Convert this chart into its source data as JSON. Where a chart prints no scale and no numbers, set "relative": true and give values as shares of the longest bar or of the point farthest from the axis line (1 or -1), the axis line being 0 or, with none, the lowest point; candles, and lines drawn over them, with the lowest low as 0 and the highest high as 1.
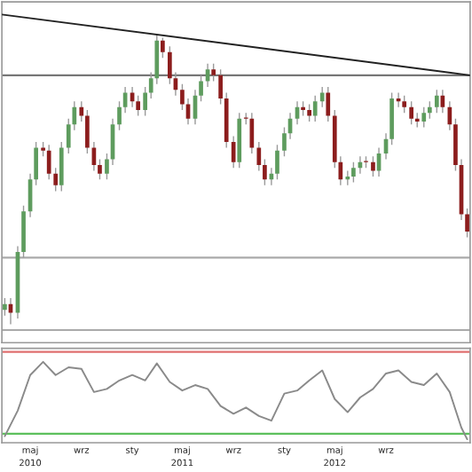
{
  "chart_data": [
    {
      "type": "candlestick",
      "relative": true,
      "xlim": [
        "2010-02-22",
        "2013-03-22"
      ],
      "tick_labels": false,
      "x": [
        "2010-03-01",
        "2010-03-15",
        "2010-04-01",
        "2010-04-15",
        "2010-05-01",
        "2010-05-15",
        "2010-06-01",
        "2010-06-15",
        "2010-07-01",
        "2010-07-15",
        "2010-08-01",
        "2010-08-15",
        "2010-09-01",
        "2010-09-15",
        "2010-10-01",
        "2010-10-15",
        "2010-11-01",
        "2010-11-15",
        "2010-12-01",
        "2010-12-15",
        "2011-01-01",
        "2011-01-15",
        "2011-02-01",
        "2011-02-15",
        "2011-03-01",
        "2011-03-15",
        "2011-04-01",
        "2011-04-15",
        "2011-05-01",
        "2011-05-15",
        "2011-06-01",
        "2011-06-15",
        "2011-07-01",
        "2011-07-15",
        "2011-08-01",
        "2011-08-15",
        "2011-09-01",
        "2011-09-15",
        "2011-10-01",
        "2011-10-15",
        "2011-11-01",
        "2011-11-15",
        "2011-12-01",
        "2011-12-15",
        "2012-01-01",
        "2012-01-15",
        "2012-02-01",
        "2012-02-15",
        "2012-03-01",
        "2012-03-15",
        "2012-04-01",
        "2012-04-15",
        "2012-05-01",
        "2012-05-15",
        "2012-06-01",
        "2012-06-15",
        "2012-07-01",
        "2012-07-15",
        "2012-08-01",
        "2012-08-15",
        "2012-09-01",
        "2012-09-15",
        "2012-10-01",
        "2012-10-15",
        "2012-11-01",
        "2012-11-15",
        "2012-12-01",
        "2012-12-15",
        "2013-01-01",
        "2013-01-15",
        "2013-02-01",
        "2013-02-15",
        "2013-03-01",
        "2013-03-15"
      ],
      "ohlc": [
        [
          0.05,
          0.09,
          0.03,
          0.07
        ],
        [
          0.07,
          0.09,
          0.0,
          0.04
        ],
        [
          0.04,
          0.27,
          0.02,
          0.25
        ],
        [
          0.25,
          0.41,
          0.23,
          0.39
        ],
        [
          0.39,
          0.52,
          0.37,
          0.5
        ],
        [
          0.5,
          0.63,
          0.48,
          0.61
        ],
        [
          0.61,
          0.63,
          0.58,
          0.6
        ],
        [
          0.6,
          0.62,
          0.5,
          0.52
        ],
        [
          0.52,
          0.54,
          0.46,
          0.48
        ],
        [
          0.48,
          0.63,
          0.46,
          0.61
        ],
        [
          0.61,
          0.71,
          0.59,
          0.69
        ],
        [
          0.69,
          0.77,
          0.67,
          0.75
        ],
        [
          0.75,
          0.77,
          0.7,
          0.72
        ],
        [
          0.72,
          0.74,
          0.59,
          0.61
        ],
        [
          0.61,
          0.63,
          0.53,
          0.55
        ],
        [
          0.55,
          0.57,
          0.5,
          0.52
        ],
        [
          0.52,
          0.59,
          0.5,
          0.57
        ],
        [
          0.57,
          0.71,
          0.55,
          0.69
        ],
        [
          0.69,
          0.77,
          0.67,
          0.75
        ],
        [
          0.75,
          0.82,
          0.73,
          0.8
        ],
        [
          0.8,
          0.82,
          0.75,
          0.77
        ],
        [
          0.77,
          0.79,
          0.72,
          0.74
        ],
        [
          0.74,
          0.82,
          0.72,
          0.8
        ],
        [
          0.8,
          0.87,
          0.78,
          0.85
        ],
        [
          0.85,
          1.0,
          0.83,
          0.98
        ],
        [
          0.98,
          0.99,
          0.92,
          0.94
        ],
        [
          0.94,
          0.96,
          0.83,
          0.85
        ],
        [
          0.85,
          0.87,
          0.79,
          0.81
        ],
        [
          0.81,
          0.83,
          0.74,
          0.76
        ],
        [
          0.76,
          0.78,
          0.69,
          0.71
        ],
        [
          0.71,
          0.81,
          0.69,
          0.79
        ],
        [
          0.79,
          0.86,
          0.77,
          0.84
        ],
        [
          0.84,
          0.9,
          0.82,
          0.88
        ],
        [
          0.88,
          0.9,
          0.84,
          0.86
        ],
        [
          0.86,
          0.88,
          0.76,
          0.78
        ],
        [
          0.78,
          0.8,
          0.61,
          0.63
        ],
        [
          0.63,
          0.65,
          0.54,
          0.56
        ],
        [
          0.56,
          0.73,
          0.54,
          0.71
        ],
        [
          0.71,
          0.73,
          0.69,
          0.71
        ],
        [
          0.71,
          0.73,
          0.59,
          0.61
        ],
        [
          0.61,
          0.63,
          0.53,
          0.55
        ],
        [
          0.55,
          0.57,
          0.48,
          0.5
        ],
        [
          0.5,
          0.54,
          0.48,
          0.52
        ],
        [
          0.52,
          0.62,
          0.5,
          0.6
        ],
        [
          0.6,
          0.68,
          0.58,
          0.66
        ],
        [
          0.66,
          0.73,
          0.64,
          0.71
        ],
        [
          0.71,
          0.77,
          0.69,
          0.75
        ],
        [
          0.75,
          0.77,
          0.72,
          0.74
        ],
        [
          0.74,
          0.76,
          0.7,
          0.72
        ],
        [
          0.72,
          0.79,
          0.7,
          0.77
        ],
        [
          0.77,
          0.82,
          0.75,
          0.8
        ],
        [
          0.8,
          0.82,
          0.7,
          0.72
        ],
        [
          0.72,
          0.74,
          0.54,
          0.56
        ],
        [
          0.56,
          0.58,
          0.48,
          0.5
        ],
        [
          0.5,
          0.53,
          0.48,
          0.51
        ],
        [
          0.51,
          0.56,
          0.49,
          0.54
        ],
        [
          0.54,
          0.58,
          0.52,
          0.56
        ],
        [
          0.56,
          0.58,
          0.54,
          0.56
        ],
        [
          0.56,
          0.58,
          0.51,
          0.53
        ],
        [
          0.53,
          0.61,
          0.51,
          0.59
        ],
        [
          0.59,
          0.66,
          0.57,
          0.64
        ],
        [
          0.64,
          0.8,
          0.62,
          0.78
        ],
        [
          0.78,
          0.8,
          0.75,
          0.77
        ],
        [
          0.77,
          0.79,
          0.73,
          0.75
        ],
        [
          0.75,
          0.77,
          0.69,
          0.71
        ],
        [
          0.71,
          0.73,
          0.68,
          0.7
        ],
        [
          0.7,
          0.75,
          0.68,
          0.73
        ],
        [
          0.73,
          0.77,
          0.71,
          0.75
        ],
        [
          0.75,
          0.81,
          0.73,
          0.79
        ],
        [
          0.79,
          0.81,
          0.73,
          0.75
        ],
        [
          0.75,
          0.77,
          0.67,
          0.69
        ],
        [
          0.69,
          0.71,
          0.53,
          0.55
        ],
        [
          0.55,
          0.57,
          0.36,
          0.38
        ],
        [
          0.38,
          0.4,
          0.3,
          0.32
        ]
      ],
      "colors": [
        "#5e9c5e",
        "#8c1d1d",
        "#5e9c5e",
        "#5e9c5e",
        "#5e9c5e",
        "#5e9c5e",
        "#8c1d1d",
        "#8c1d1d",
        "#8c1d1d",
        "#5e9c5e",
        "#5e9c5e",
        "#5e9c5e",
        "#8c1d1d",
        "#8c1d1d",
        "#8c1d1d",
        "#8c1d1d",
        "#5e9c5e",
        "#5e9c5e",
        "#5e9c5e",
        "#5e9c5e",
        "#8c1d1d",
        "#8c1d1d",
        "#5e9c5e",
        "#5e9c5e",
        "#5e9c5e",
        "#8c1d1d",
        "#8c1d1d",
        "#8c1d1d",
        "#8c1d1d",
        "#8c1d1d",
        "#5e9c5e",
        "#5e9c5e",
        "#5e9c5e",
        "#8c1d1d",
        "#8c1d1d",
        "#8c1d1d",
        "#8c1d1d",
        "#5e9c5e",
        "#8c1d1d",
        "#8c1d1d",
        "#8c1d1d",
        "#8c1d1d",
        "#5e9c5e",
        "#5e9c5e",
        "#5e9c5e",
        "#5e9c5e",
        "#5e9c5e",
        "#8c1d1d",
        "#8c1d1d",
        "#5e9c5e",
        "#5e9c5e",
        "#8c1d1d",
        "#8c1d1d",
        "#8c1d1d",
        "#5e9c5e",
        "#5e9c5e",
        "#5e9c5e",
        "#8c1d1d",
        "#8c1d1d",
        "#5e9c5e",
        "#5e9c5e",
        "#5e9c5e",
        "#8c1d1d",
        "#8c1d1d",
        "#8c1d1d",
        "#8c1d1d",
        "#5e9c5e",
        "#5e9c5e",
        "#5e9c5e",
        "#8c1d1d",
        "#8c1d1d",
        "#8c1d1d",
        "#8c1d1d",
        "#8c1d1d"
      ],
      "series": [
        {
          "type": "line",
          "color": "#222222",
          "x": [
            "2010-02-22",
            "2013-03-22"
          ],
          "values": [
            1.07,
            0.86
          ]
        }
      ],
      "ref_lines": [
        {
          "axis": "y",
          "value": 0.86,
          "color": "#777777"
        },
        {
          "axis": "y",
          "value": 0.23,
          "color": "#aaaaaa"
        },
        {
          "axis": "y",
          "value": -0.02,
          "color": "#aaaaaa"
        }
      ]
    },
    {
      "type": "line",
      "relative": true,
      "xlim": [
        "2010-02-22",
        "2013-03-22"
      ],
      "tick_labels": "x",
      "xticks": [
        {
          "value": "2010-05-01",
          "label": "maj\n2010"
        },
        {
          "value": "2010-09-01",
          "label": "wrz"
        },
        {
          "value": "2011-01-01",
          "label": "sty"
        },
        {
          "value": "2011-05-01",
          "label": "maj\n2011"
        },
        {
          "value": "2011-09-01",
          "label": "wrz"
        },
        {
          "value": "2012-01-01",
          "label": "sty"
        },
        {
          "value": "2012-05-01",
          "label": "maj\n2012"
        },
        {
          "value": "2012-09-01",
          "label": "wrz"
        }
      ],
      "series": [
        {
          "color": "#8a8a8a",
          "x": [
            "2010-03-01",
            "2010-04-01",
            "2010-05-01",
            "2010-06-01",
            "2010-07-01",
            "2010-08-01",
            "2010-09-01",
            "2010-10-01",
            "2010-11-01",
            "2010-12-01",
            "2011-01-01",
            "2011-02-01",
            "2011-03-01",
            "2011-04-01",
            "2011-05-01",
            "2011-06-01",
            "2011-07-01",
            "2011-08-01",
            "2011-09-01",
            "2011-10-01",
            "2011-11-01",
            "2011-12-01",
            "2012-01-01",
            "2012-02-01",
            "2012-03-01",
            "2012-04-01",
            "2012-05-01",
            "2012-06-01",
            "2012-07-01",
            "2012-08-01",
            "2012-09-01",
            "2012-10-01",
            "2012-11-01",
            "2012-12-01",
            "2013-01-01",
            "2013-02-01",
            "2013-03-01",
            "2013-03-15"
          ],
          "values": [
            0.04,
            0.37,
            0.83,
            1.0,
            0.83,
            0.93,
            0.91,
            0.61,
            0.65,
            0.76,
            0.83,
            0.76,
            0.98,
            0.74,
            0.63,
            0.7,
            0.65,
            0.43,
            0.33,
            0.41,
            0.3,
            0.24,
            0.59,
            0.63,
            0.76,
            0.89,
            0.52,
            0.35,
            0.54,
            0.65,
            0.85,
            0.89,
            0.74,
            0.7,
            0.85,
            0.61,
            0.15,
            0.0
          ]
        }
      ],
      "ref_lines": [
        {
          "axis": "y",
          "value": 1.13,
          "color": "#e07070"
        },
        {
          "axis": "y",
          "value": 0.07,
          "color": "#5cc05c"
        }
      ]
    }
  ]
}
